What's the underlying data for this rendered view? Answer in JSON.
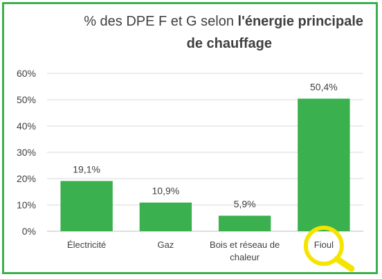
{
  "chart_data": {
    "type": "bar",
    "title_prefix": "% des DPE F et G selon ",
    "title_bold_1": "l'énergie principale",
    "title_bold_2": "de chauffage",
    "categories": [
      "Électricité",
      "Gaz",
      "Bois et réseau de chaleur",
      "Fioul"
    ],
    "category_lines": [
      [
        "Électricité"
      ],
      [
        "Gaz"
      ],
      [
        "Bois et réseau de",
        "chaleur"
      ],
      [
        "Fioul"
      ]
    ],
    "values": [
      19.1,
      10.9,
      5.9,
      50.4
    ],
    "data_labels": [
      "19,1%",
      "10,9%",
      "5,9%",
      "50,4%"
    ],
    "y_ticks": [
      "0%",
      "10%",
      "20%",
      "30%",
      "40%",
      "50%",
      "60%"
    ],
    "ylim": [
      0,
      60
    ],
    "grid": true,
    "highlight_category": "Fioul",
    "highlight_icon": "magnifying-glass-icon",
    "colors": {
      "bar": "#3ab04e",
      "frame": "#3ab04e",
      "grid": "#d9d9d9",
      "text": "#404040",
      "highlight": "#f5e400"
    }
  }
}
